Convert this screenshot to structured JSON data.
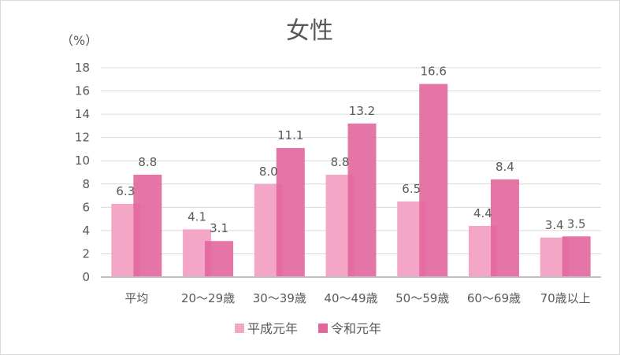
{
  "chart_data": {
    "type": "bar",
    "title": "女性",
    "unit_label": "（%）",
    "categories": [
      "平均",
      "20～29歳",
      "30～39歳",
      "40～49歳",
      "50～59歳",
      "60～69歳",
      "70歳以上"
    ],
    "series": [
      {
        "name": "平成元年",
        "values": [
          6.3,
          4.1,
          8.0,
          8.8,
          6.5,
          4.4,
          3.4
        ],
        "value_labels": [
          "6.3",
          "4.1",
          "8.0",
          "8.8",
          "6.5",
          "4.4",
          "3.4"
        ],
        "color": "#f4a6c6"
      },
      {
        "name": "令和元年",
        "values": [
          8.8,
          3.1,
          11.1,
          13.2,
          16.6,
          8.4,
          3.5
        ],
        "value_labels": [
          "8.8",
          "3.1",
          "11.1",
          "13.2",
          "16.6",
          "8.4",
          "3.5"
        ],
        "color": "#e2669c"
      }
    ],
    "ylim": [
      0,
      18
    ],
    "yticks": [
      0,
      2,
      4,
      6,
      8,
      10,
      12,
      14,
      16,
      18
    ],
    "grid": true,
    "legend_position": "bottom"
  }
}
